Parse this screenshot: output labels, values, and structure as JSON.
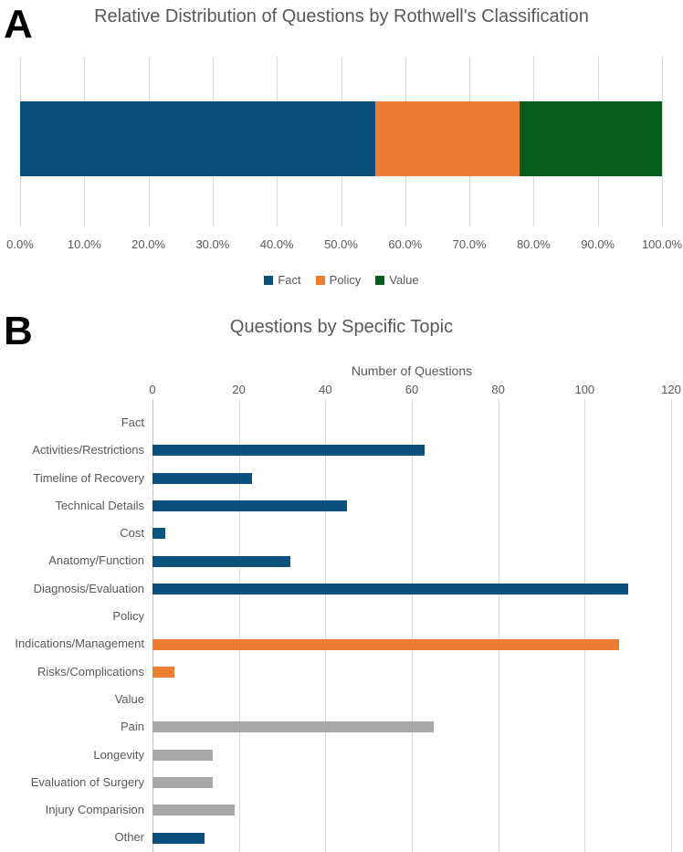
{
  "panels": [
    {
      "label": "A"
    },
    {
      "label": "B"
    }
  ],
  "colors": {
    "fact": "#0a517e",
    "policy": "#ed7d31",
    "value": "#065d1b",
    "topic_gray": "#a8a8a8",
    "grid": "#d9d9d9",
    "axis": "#c6c6c6",
    "text": "#595959",
    "panel_label": "#000000"
  },
  "chart_data": [
    {
      "type": "bar",
      "subtype": "stacked-horizontal",
      "title": "Relative Distribution of Questions by Rothwell's Classification",
      "unit": "percent",
      "xlim": [
        0,
        100
      ],
      "grid": true,
      "series": [
        {
          "name": "Fact",
          "value": 55.3,
          "color_key": "fact"
        },
        {
          "name": "Policy",
          "value": 22.5,
          "color_key": "policy"
        },
        {
          "name": "Value",
          "value": 22.2,
          "color_key": "value"
        }
      ],
      "x_ticks": [
        "0.0%",
        "10.0%",
        "20.0%",
        "30.0%",
        "40.0%",
        "50.0%",
        "60.0%",
        "70.0%",
        "80.0%",
        "90.0%",
        "100.0%"
      ],
      "legend_position": "bottom",
      "legend": [
        {
          "label": "Fact",
          "color_key": "fact"
        },
        {
          "label": "Policy",
          "color_key": "policy"
        },
        {
          "label": "Value",
          "color_key": "value"
        }
      ]
    },
    {
      "type": "bar",
      "subtype": "horizontal",
      "title": "Questions by Specific Topic",
      "xlabel": "Number of Questions",
      "xlim": [
        0,
        120
      ],
      "x_ticks": [
        0,
        20,
        40,
        60,
        80,
        100,
        120
      ],
      "grid": true,
      "axis_position": "top",
      "rows": [
        {
          "label": "Fact",
          "value": 0,
          "color_key": "fact",
          "is_group_header": true
        },
        {
          "label": "Activities/Restrictions",
          "value": 63,
          "color_key": "fact"
        },
        {
          "label": "Timeline of Recovery",
          "value": 23,
          "color_key": "fact"
        },
        {
          "label": "Technical Details",
          "value": 45,
          "color_key": "fact"
        },
        {
          "label": "Cost",
          "value": 3,
          "color_key": "fact"
        },
        {
          "label": "Anatomy/Function",
          "value": 32,
          "color_key": "fact"
        },
        {
          "label": "Diagnosis/Evaluation",
          "value": 110,
          "color_key": "fact"
        },
        {
          "label": "Policy",
          "value": 0,
          "color_key": "policy",
          "is_group_header": true
        },
        {
          "label": "Indications/Management",
          "value": 108,
          "color_key": "policy"
        },
        {
          "label": "Risks/Complications",
          "value": 5,
          "color_key": "policy"
        },
        {
          "label": "Value",
          "value": 0,
          "color_key": "value",
          "is_group_header": true
        },
        {
          "label": "Pain",
          "value": 65,
          "color_key": "topic_gray"
        },
        {
          "label": "Longevity",
          "value": 14,
          "color_key": "topic_gray"
        },
        {
          "label": "Evaluation of Surgery",
          "value": 14,
          "color_key": "topic_gray"
        },
        {
          "label": "Injury Comparision",
          "value": 19,
          "color_key": "topic_gray"
        },
        {
          "label": "Other",
          "value": 12,
          "color_key": "fact"
        }
      ]
    }
  ]
}
